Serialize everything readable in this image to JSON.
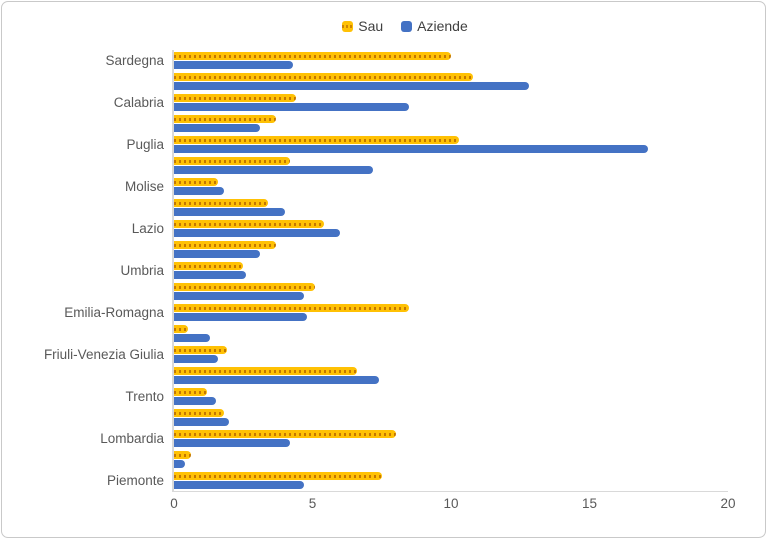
{
  "legend": {
    "position": "top-center",
    "items": [
      {
        "label": "Sau",
        "color": "#FFC104"
      },
      {
        "label": "Aziende",
        "color": "#4472C4"
      }
    ]
  },
  "chart_data": {
    "type": "bar",
    "orientation": "horizontal",
    "title": "",
    "xlabel": "",
    "ylabel": "",
    "grid": false,
    "xlim": [
      0,
      20
    ],
    "x_ticks": [
      0,
      5,
      10,
      15,
      20
    ],
    "categories_note": "top-to-bottom as displayed; only alternate category tick labels are shown in the image, unlabeled rows have empty strings",
    "categories": [
      "Sardegna",
      "",
      "Calabria",
      "",
      "Puglia",
      "",
      "Molise",
      "",
      "Lazio",
      "",
      "Umbria",
      "",
      "Emilia-Romagna",
      "",
      "Friuli-Venezia Giulia",
      "",
      "Trento",
      "",
      "Lombardia",
      "",
      "Piemonte"
    ],
    "series": [
      {
        "name": "Sau",
        "color": "#FFC104",
        "values": [
          10.0,
          10.8,
          4.4,
          3.7,
          10.3,
          4.2,
          1.6,
          3.4,
          5.4,
          3.7,
          2.5,
          5.1,
          8.5,
          0.5,
          1.9,
          6.6,
          1.2,
          1.8,
          8.0,
          0.6,
          7.5
        ]
      },
      {
        "name": "Aziende",
        "color": "#4472C4",
        "values": [
          4.3,
          12.8,
          8.5,
          3.1,
          17.1,
          7.2,
          1.8,
          4.0,
          6.0,
          3.1,
          2.6,
          4.7,
          4.8,
          1.3,
          1.6,
          7.4,
          1.5,
          2.0,
          4.2,
          0.4,
          4.7
        ]
      }
    ]
  }
}
